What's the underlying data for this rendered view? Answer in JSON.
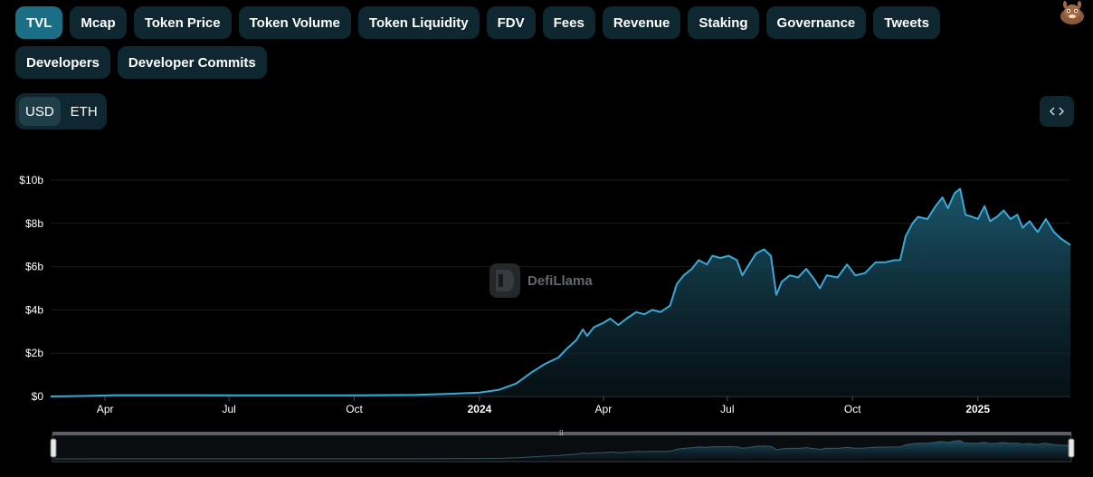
{
  "metrics": {
    "items": [
      {
        "label": "TVL",
        "active": true
      },
      {
        "label": "Mcap"
      },
      {
        "label": "Token Price"
      },
      {
        "label": "Token Volume"
      },
      {
        "label": "Token Liquidity"
      },
      {
        "label": "FDV"
      },
      {
        "label": "Fees"
      },
      {
        "label": "Revenue"
      },
      {
        "label": "Staking"
      },
      {
        "label": "Governance"
      },
      {
        "label": "Tweets"
      },
      {
        "label": "Developers"
      },
      {
        "label": "Developer Commits"
      }
    ]
  },
  "currency": {
    "options": [
      "USD",
      "ETH"
    ],
    "selected": "USD"
  },
  "embed": {
    "icon": "code-brackets-icon"
  },
  "avatar": {
    "icon": "llama-avatar-icon"
  },
  "watermark": {
    "text": "DefiLlama",
    "icon": "defillama-logo-icon"
  },
  "colors": {
    "line": "#3aa9d6",
    "area_top": "#1c5a70",
    "active_tab": "#1a6e85",
    "button_bg": "#0e2730"
  },
  "chart_data": {
    "type": "area",
    "series": [
      {
        "name": "TVL",
        "unit": "USD billions"
      }
    ],
    "y_ticks": [
      "$0",
      "$2b",
      "$4b",
      "$6b",
      "$8b",
      "$10b"
    ],
    "ylim": [
      0,
      10
    ],
    "x_ticks": [
      {
        "label": "Apr",
        "date": "2023-04-01"
      },
      {
        "label": "Jul",
        "date": "2023-07-01"
      },
      {
        "label": "Oct",
        "date": "2023-10-01"
      },
      {
        "label": "2024",
        "date": "2024-01-01",
        "bold": true
      },
      {
        "label": "Apr",
        "date": "2024-04-01"
      },
      {
        "label": "Jul",
        "date": "2024-07-01"
      },
      {
        "label": "Oct",
        "date": "2024-10-01"
      },
      {
        "label": "2025",
        "date": "2025-01-01",
        "bold": true
      }
    ],
    "xlim": [
      "2023-02-20",
      "2025-03-10"
    ],
    "grid": "horizontal",
    "points": [
      [
        "2023-02-20",
        0.0
      ],
      [
        "2023-03-15",
        0.02
      ],
      [
        "2023-04-10",
        0.06
      ],
      [
        "2023-06-01",
        0.06
      ],
      [
        "2023-08-01",
        0.05
      ],
      [
        "2023-10-01",
        0.05
      ],
      [
        "2023-11-15",
        0.07
      ],
      [
        "2023-12-10",
        0.12
      ],
      [
        "2024-01-01",
        0.18
      ],
      [
        "2024-01-15",
        0.3
      ],
      [
        "2024-01-28",
        0.6
      ],
      [
        "2024-02-08",
        1.1
      ],
      [
        "2024-02-18",
        1.5
      ],
      [
        "2024-02-28",
        1.8
      ],
      [
        "2024-03-05",
        2.2
      ],
      [
        "2024-03-12",
        2.6
      ],
      [
        "2024-03-17",
        3.1
      ],
      [
        "2024-03-20",
        2.8
      ],
      [
        "2024-03-25",
        3.2
      ],
      [
        "2024-04-01",
        3.4
      ],
      [
        "2024-04-06",
        3.6
      ],
      [
        "2024-04-12",
        3.3
      ],
      [
        "2024-04-18",
        3.6
      ],
      [
        "2024-04-25",
        3.9
      ],
      [
        "2024-05-01",
        3.8
      ],
      [
        "2024-05-07",
        4.0
      ],
      [
        "2024-05-13",
        3.9
      ],
      [
        "2024-05-20",
        4.2
      ],
      [
        "2024-05-25",
        5.2
      ],
      [
        "2024-05-30",
        5.6
      ],
      [
        "2024-06-05",
        5.9
      ],
      [
        "2024-06-10",
        6.3
      ],
      [
        "2024-06-16",
        6.1
      ],
      [
        "2024-06-20",
        6.5
      ],
      [
        "2024-06-26",
        6.4
      ],
      [
        "2024-07-02",
        6.5
      ],
      [
        "2024-07-08",
        6.3
      ],
      [
        "2024-07-12",
        5.6
      ],
      [
        "2024-07-17",
        6.1
      ],
      [
        "2024-07-22",
        6.6
      ],
      [
        "2024-07-28",
        6.8
      ],
      [
        "2024-08-02",
        6.5
      ],
      [
        "2024-08-06",
        4.7
      ],
      [
        "2024-08-10",
        5.3
      ],
      [
        "2024-08-16",
        5.6
      ],
      [
        "2024-08-22",
        5.5
      ],
      [
        "2024-08-28",
        5.9
      ],
      [
        "2024-09-03",
        5.4
      ],
      [
        "2024-09-07",
        5.0
      ],
      [
        "2024-09-12",
        5.6
      ],
      [
        "2024-09-20",
        5.5
      ],
      [
        "2024-09-27",
        6.1
      ],
      [
        "2024-10-03",
        5.6
      ],
      [
        "2024-10-10",
        5.7
      ],
      [
        "2024-10-18",
        6.2
      ],
      [
        "2024-10-25",
        6.2
      ],
      [
        "2024-11-01",
        6.3
      ],
      [
        "2024-11-05",
        6.3
      ],
      [
        "2024-11-09",
        7.4
      ],
      [
        "2024-11-14",
        8.0
      ],
      [
        "2024-11-18",
        8.3
      ],
      [
        "2024-11-25",
        8.2
      ],
      [
        "2024-12-01",
        8.8
      ],
      [
        "2024-12-06",
        9.2
      ],
      [
        "2024-12-10",
        8.7
      ],
      [
        "2024-12-15",
        9.4
      ],
      [
        "2024-12-19",
        9.6
      ],
      [
        "2024-12-23",
        8.4
      ],
      [
        "2024-12-28",
        8.3
      ],
      [
        "2025-01-01",
        8.2
      ],
      [
        "2025-01-06",
        8.8
      ],
      [
        "2025-01-10",
        8.1
      ],
      [
        "2025-01-15",
        8.3
      ],
      [
        "2025-01-20",
        8.6
      ],
      [
        "2025-01-25",
        8.2
      ],
      [
        "2025-01-30",
        8.4
      ],
      [
        "2025-02-03",
        7.8
      ],
      [
        "2025-02-08",
        8.1
      ],
      [
        "2025-02-14",
        7.6
      ],
      [
        "2025-02-20",
        8.2
      ],
      [
        "2025-02-26",
        7.6
      ],
      [
        "2025-03-03",
        7.3
      ],
      [
        "2025-03-10",
        7.0
      ]
    ]
  }
}
